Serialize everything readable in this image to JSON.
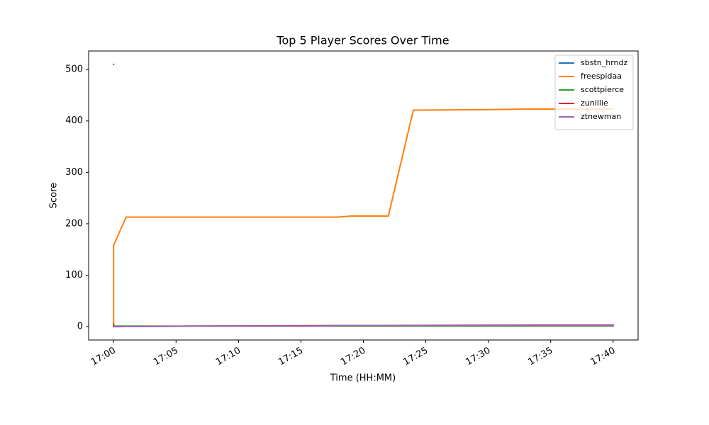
{
  "chart_data": {
    "type": "line",
    "title": "Top 5 Player Scores Over Time",
    "x_label": "Time (HH:MM)",
    "y_label": "Score",
    "xlim": [
      "16:58",
      "17:42"
    ],
    "xticks": [
      "17:00",
      "17:05",
      "17:10",
      "17:15",
      "17:20",
      "17:25",
      "17:30",
      "17:35",
      "17:40"
    ],
    "ylim": [
      -26,
      536
    ],
    "yticks": [
      0,
      100,
      200,
      300,
      400,
      500
    ],
    "grid": false,
    "legend": "upper-right",
    "series": [
      {
        "name": "sbstn_hrndz",
        "color": "#1f77b4",
        "x": [
          "17:00",
          "17:00"
        ],
        "values": [
          510,
          510
        ]
      },
      {
        "name": "freespidaa",
        "color": "#ff7f0e",
        "x": [
          "17:00",
          "17:00",
          "17:01",
          "17:18",
          "17:19",
          "17:22",
          "17:24",
          "17:30",
          "17:33",
          "17:40"
        ],
        "values": [
          5,
          158,
          213,
          213,
          215,
          215,
          421,
          422,
          423,
          423
        ]
      },
      {
        "name": "scottpierce",
        "color": "#2ca02c",
        "x": [
          "17:00",
          "17:40"
        ],
        "values": [
          1,
          1
        ]
      },
      {
        "name": "zunillie",
        "color": "#d62728",
        "x": [
          "17:00",
          "17:00",
          "17:06",
          "17:18",
          "17:36",
          "17:40"
        ],
        "values": [
          5,
          0,
          1,
          2,
          3,
          3
        ]
      },
      {
        "name": "ztnewman",
        "color": "#9467bd",
        "x": [
          "17:00",
          "17:06",
          "17:16",
          "17:18",
          "17:40"
        ],
        "values": [
          0,
          1,
          1,
          2,
          2
        ]
      }
    ]
  }
}
